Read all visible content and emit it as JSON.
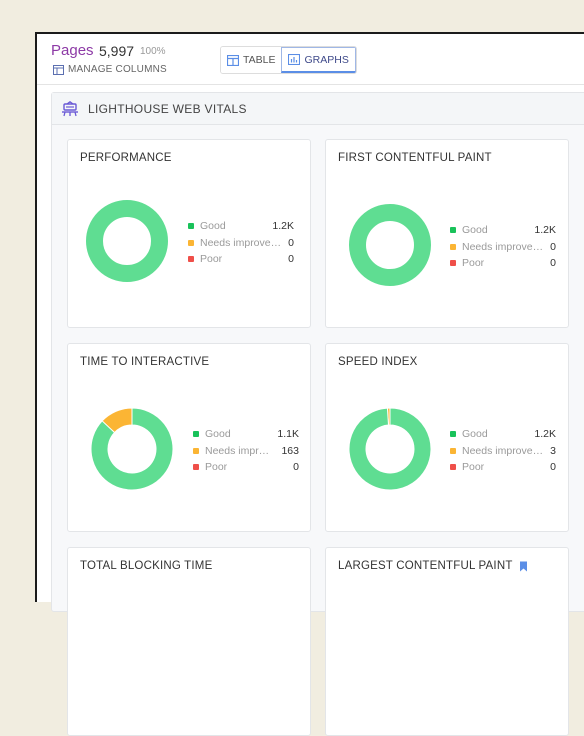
{
  "header": {
    "pages_label": "Pages",
    "pages_count": "5,997",
    "pages_percent": "100%",
    "manage_columns": "MANAGE COLUMNS",
    "view_toggle": [
      {
        "label": "TABLE",
        "icon": "table-icon",
        "active": false
      },
      {
        "label": "GRAPHS",
        "icon": "bar-chart-icon",
        "active": true
      }
    ]
  },
  "section": {
    "title": "LIGHTHOUSE WEB VITALS",
    "icon": "lighthouse-icon"
  },
  "colors": {
    "good": "#5fdd92",
    "needs": "#fbb534",
    "poor": "#ef4f49",
    "accent": "#8d3aa6"
  },
  "legend_labels": {
    "good": "Good",
    "needs": "Needs improvement",
    "poor": "Poor"
  },
  "cards": [
    {
      "title": "PERFORMANCE",
      "needs_label": "Needs improve…",
      "good": "1.2K",
      "needs": "0",
      "poor": "0",
      "good_frac": 1.0,
      "needs_frac": 0.0,
      "poor_frac": 0.0
    },
    {
      "title": "FIRST CONTENTFUL PAINT",
      "needs_label": "Needs improve…",
      "good": "1.2K",
      "needs": "0",
      "poor": "0",
      "good_frac": 1.0,
      "needs_frac": 0.0,
      "poor_frac": 0.0
    },
    {
      "title": "TIME TO INTERACTIVE",
      "needs_label": "Needs impr…",
      "good": "1.1K",
      "needs": "163",
      "poor": "0",
      "good_frac": 0.87,
      "needs_frac": 0.13,
      "poor_frac": 0.0
    },
    {
      "title": "SPEED INDEX",
      "needs_label": "Needs improve…",
      "good": "1.2K",
      "needs": "3",
      "poor": "0",
      "good_frac": 0.99,
      "needs_frac": 0.01,
      "poor_frac": 0.0
    },
    {
      "title": "TOTAL BLOCKING TIME"
    },
    {
      "title": "LARGEST CONTENTFUL PAINT",
      "has_bookmark": true
    }
  ]
}
